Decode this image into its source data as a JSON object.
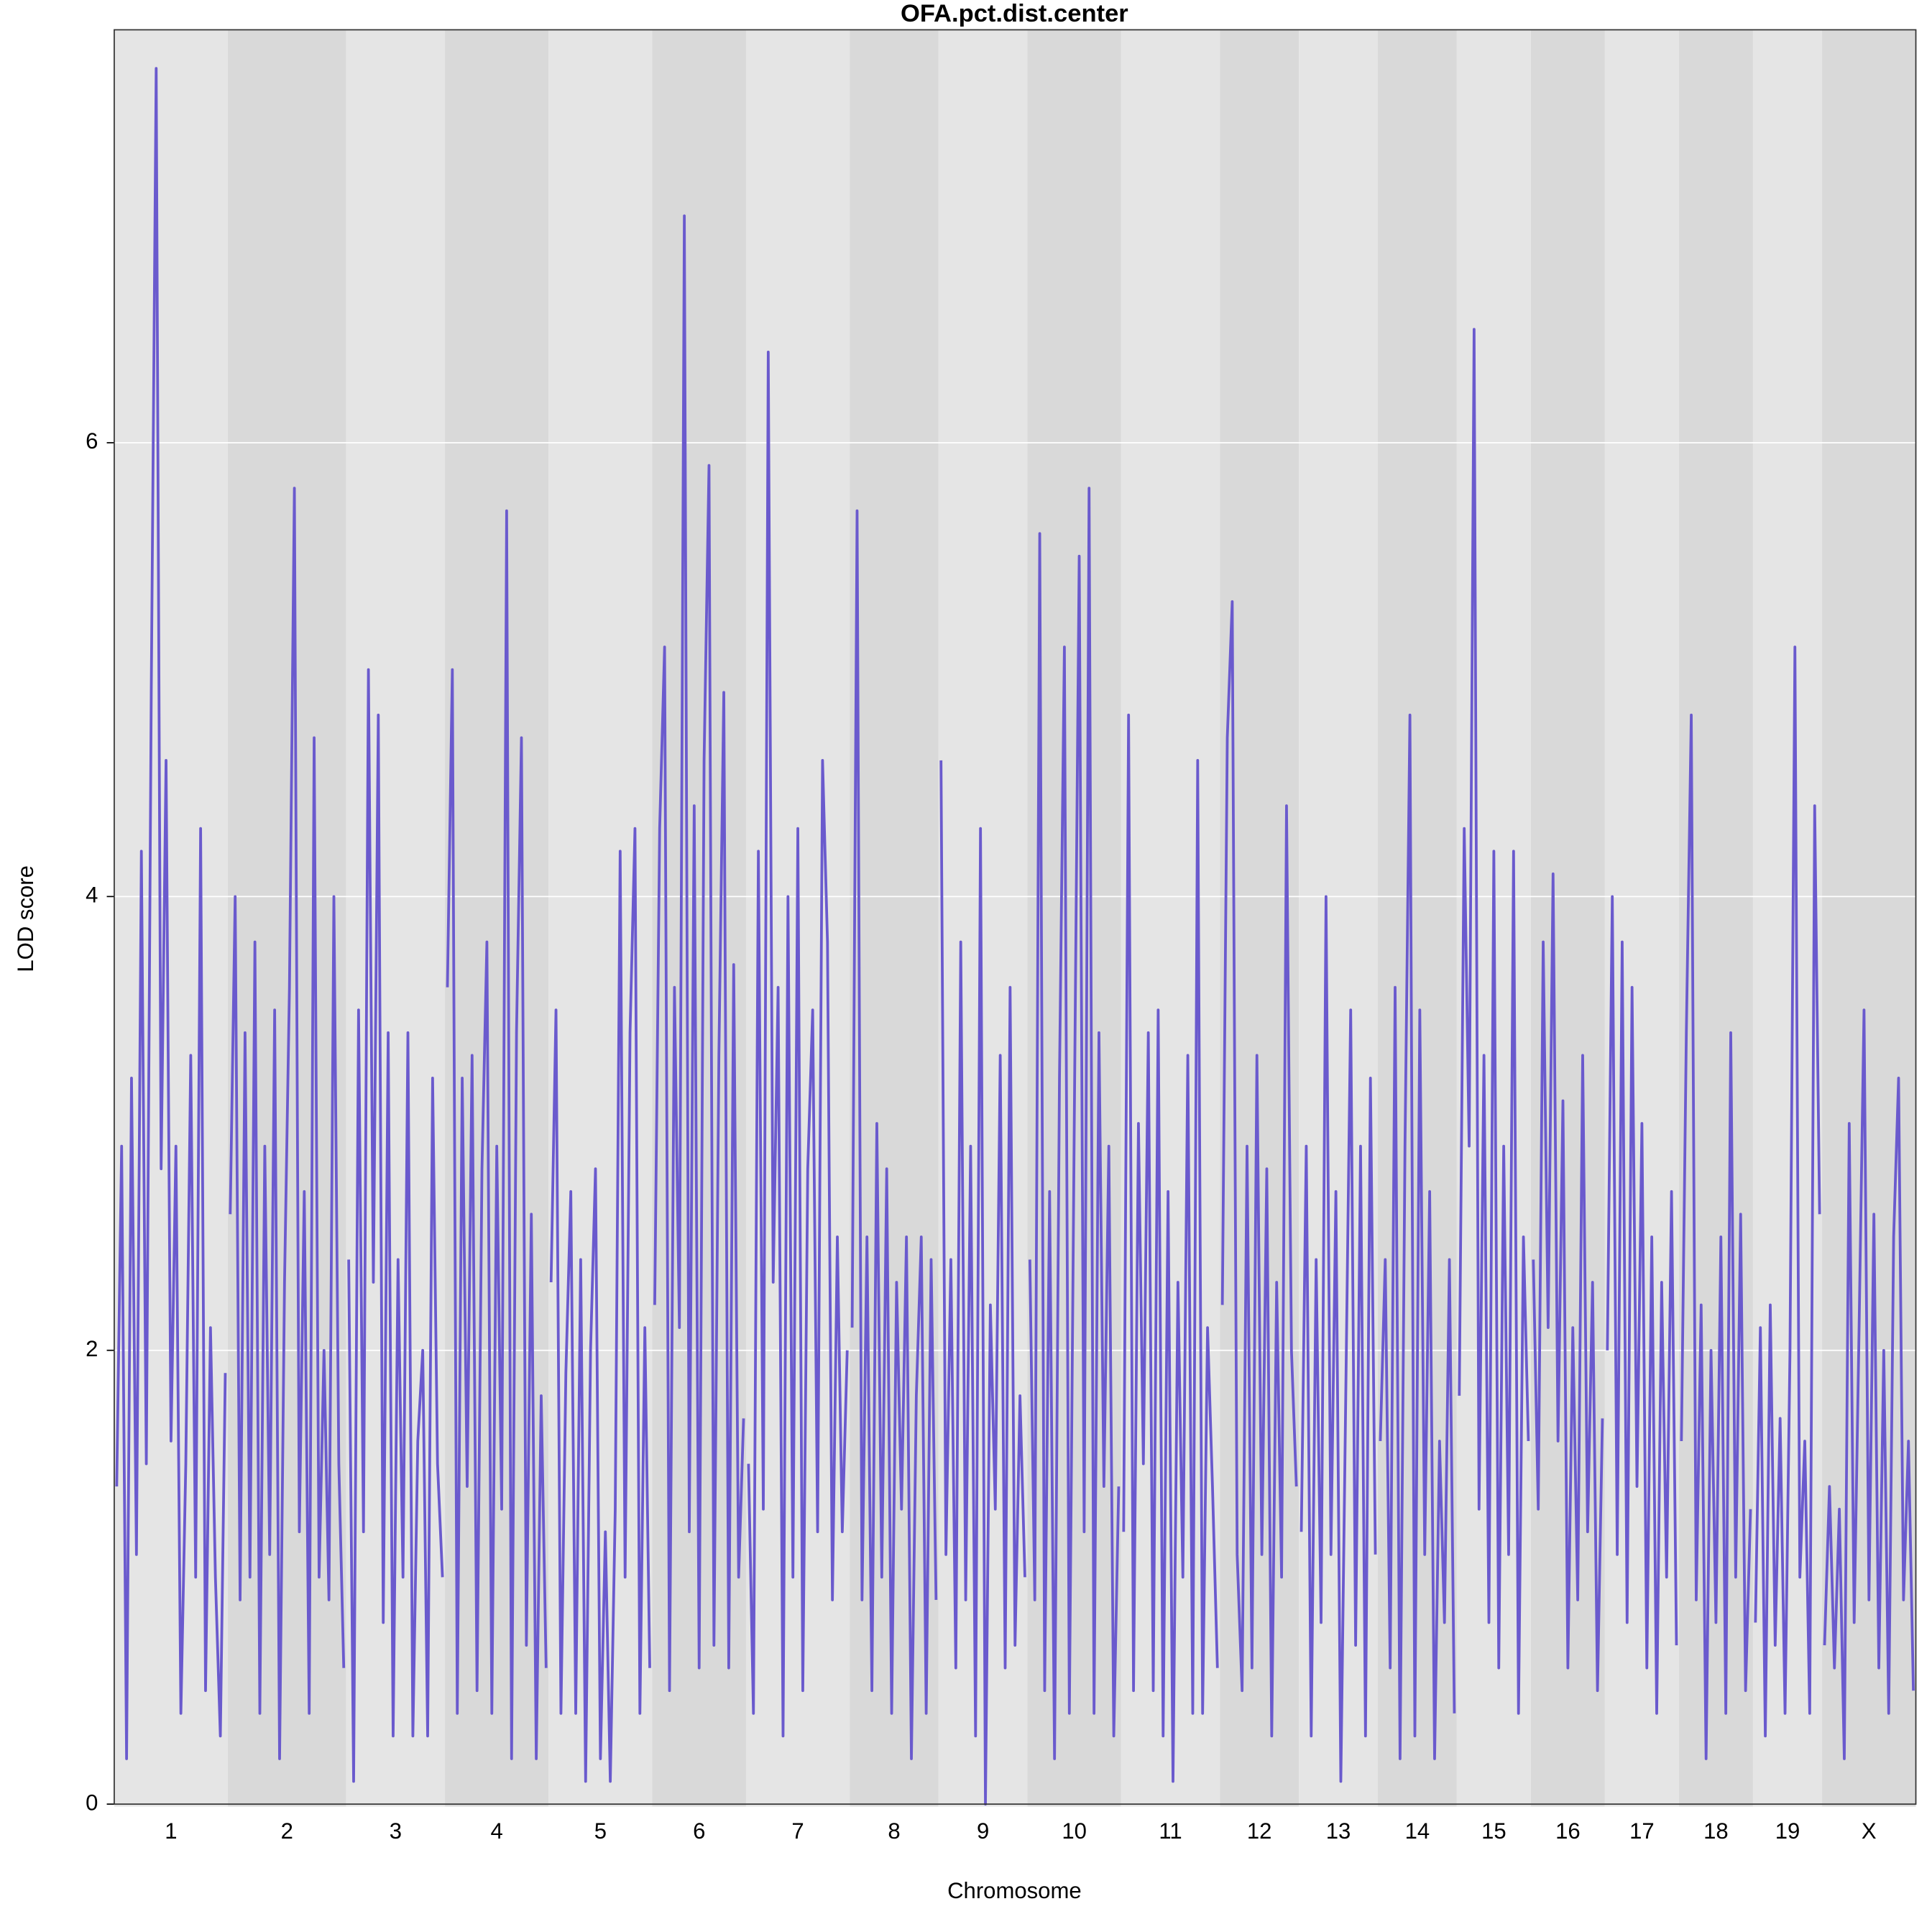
{
  "chart_data": {
    "type": "line",
    "title": "OFA.pct.dist.center",
    "xlabel": "Chromosome",
    "ylabel": "LOD score",
    "color": "#6a5acd",
    "band_colors": [
      "#e5e5e5",
      "#d9d9d9"
    ],
    "grid": true,
    "ylim": [
      0,
      7.82
    ],
    "yticks": [
      0,
      2,
      4,
      6
    ],
    "categories": [
      "1",
      "2",
      "3",
      "4",
      "5",
      "6",
      "7",
      "8",
      "9",
      "10",
      "11",
      "12",
      "13",
      "14",
      "15",
      "16",
      "17",
      "18",
      "19",
      "X"
    ],
    "values": [
      [
        1.4,
        2.9,
        0.2,
        3.2,
        1.1,
        4.2,
        1.5,
        4.9,
        7.65,
        2.8,
        4.6,
        1.6,
        2.9,
        0.4,
        1.5,
        3.3,
        1.0,
        4.3,
        0.5,
        2.1,
        1.0,
        0.3,
        1.9
      ],
      [
        2.6,
        4.0,
        0.9,
        3.4,
        1.0,
        3.8,
        0.4,
        2.9,
        1.1,
        3.5,
        0.2,
        2.3,
        3.6,
        5.8,
        1.2,
        2.7,
        0.4,
        4.7,
        1.0,
        2.0,
        0.9,
        4.0,
        1.5,
        0.6
      ],
      [
        2.4,
        0.1,
        3.5,
        1.2,
        5.0,
        2.3,
        4.8,
        0.8,
        3.4,
        0.3,
        2.4,
        1.0,
        3.4,
        0.3,
        1.6,
        2.0,
        0.3,
        3.2,
        1.5,
        1.0
      ],
      [
        3.6,
        5.0,
        0.4,
        3.2,
        1.4,
        3.3,
        0.5,
        2.8,
        3.8,
        0.4,
        2.9,
        1.3,
        5.7,
        0.2,
        3.4,
        4.7,
        0.7,
        2.6,
        0.2,
        1.8,
        0.6
      ],
      [
        2.3,
        3.5,
        0.4,
        1.9,
        2.7,
        0.4,
        2.4,
        0.1,
        2.0,
        2.8,
        0.2,
        1.2,
        0.1,
        1.3,
        4.2,
        1.0,
        3.4,
        4.3,
        0.4,
        2.1,
        0.6
      ],
      [
        2.2,
        4.3,
        5.1,
        0.5,
        3.6,
        2.1,
        7.0,
        1.2,
        4.4,
        0.6,
        4.6,
        5.9,
        0.7,
        3.3,
        4.9,
        0.6,
        3.7,
        1.0,
        1.7
      ],
      [
        1.5,
        0.4,
        4.2,
        1.3,
        6.4,
        2.3,
        3.6,
        0.3,
        4.0,
        1.0,
        4.3,
        0.5,
        2.8,
        3.5,
        1.2,
        4.6,
        3.8,
        0.9,
        2.5,
        1.2,
        2.0
      ],
      [
        2.1,
        5.7,
        0.9,
        2.5,
        0.5,
        3.0,
        1.0,
        2.8,
        0.4,
        2.3,
        1.3,
        2.5,
        0.2,
        1.8,
        2.5,
        0.4,
        2.4,
        0.9
      ],
      [
        4.6,
        1.1,
        2.4,
        0.6,
        3.8,
        0.9,
        2.9,
        0.3,
        4.3,
        0.0,
        2.2,
        1.3,
        3.3,
        0.6,
        3.6,
        0.7,
        1.8,
        1.0
      ],
      [
        2.4,
        0.9,
        5.6,
        0.5,
        2.7,
        0.2,
        3.2,
        5.1,
        0.4,
        3.0,
        5.5,
        1.2,
        5.8,
        0.4,
        3.4,
        1.4,
        2.9,
        0.3,
        1.4
      ],
      [
        1.2,
        4.8,
        0.5,
        3.0,
        1.5,
        3.4,
        0.5,
        3.5,
        0.3,
        2.7,
        0.1,
        2.3,
        1.0,
        3.3,
        0.4,
        4.6,
        0.4,
        2.1,
        1.4,
        0.6
      ],
      [
        2.2,
        4.7,
        5.3,
        1.1,
        0.5,
        2.9,
        0.6,
        3.3,
        1.1,
        2.8,
        0.3,
        2.3,
        1.0,
        4.4,
        2.0,
        1.4
      ],
      [
        1.2,
        2.9,
        0.3,
        2.4,
        0.8,
        4.0,
        1.1,
        2.7,
        0.1,
        1.8,
        3.5,
        0.7,
        2.9,
        0.3,
        3.2,
        1.1
      ],
      [
        1.6,
        2.4,
        0.6,
        3.6,
        0.2,
        2.9,
        4.8,
        0.3,
        3.5,
        1.1,
        2.7,
        0.2,
        1.6,
        0.8,
        2.4,
        0.4
      ],
      [
        1.8,
        4.3,
        2.9,
        6.5,
        1.3,
        3.3,
        0.8,
        4.2,
        0.6,
        2.9,
        1.1,
        4.2,
        0.4,
        2.5,
        1.6
      ],
      [
        2.4,
        1.3,
        3.8,
        2.1,
        4.1,
        1.6,
        3.1,
        0.6,
        2.1,
        0.9,
        3.3,
        1.2,
        2.3,
        0.5,
        1.7
      ],
      [
        2.0,
        4.0,
        1.1,
        3.8,
        0.8,
        3.6,
        1.4,
        3.0,
        0.6,
        2.5,
        0.4,
        2.3,
        1.0,
        2.7,
        0.7
      ],
      [
        1.6,
        3.4,
        4.8,
        0.9,
        2.2,
        0.2,
        2.0,
        0.8,
        2.5,
        0.4,
        3.4,
        1.0,
        2.6,
        0.5,
        1.3
      ],
      [
        0.8,
        2.1,
        0.3,
        2.2,
        0.7,
        1.7,
        0.4,
        2.0,
        5.1,
        1.0,
        1.6,
        0.4,
        4.4,
        2.6
      ],
      [
        0.7,
        1.4,
        0.6,
        1.3,
        0.2,
        3.0,
        0.8,
        2.1,
        3.5,
        0.9,
        2.6,
        0.6,
        2.0,
        0.4,
        2.5,
        3.2,
        0.9,
        1.6,
        0.5
      ]
    ]
  }
}
